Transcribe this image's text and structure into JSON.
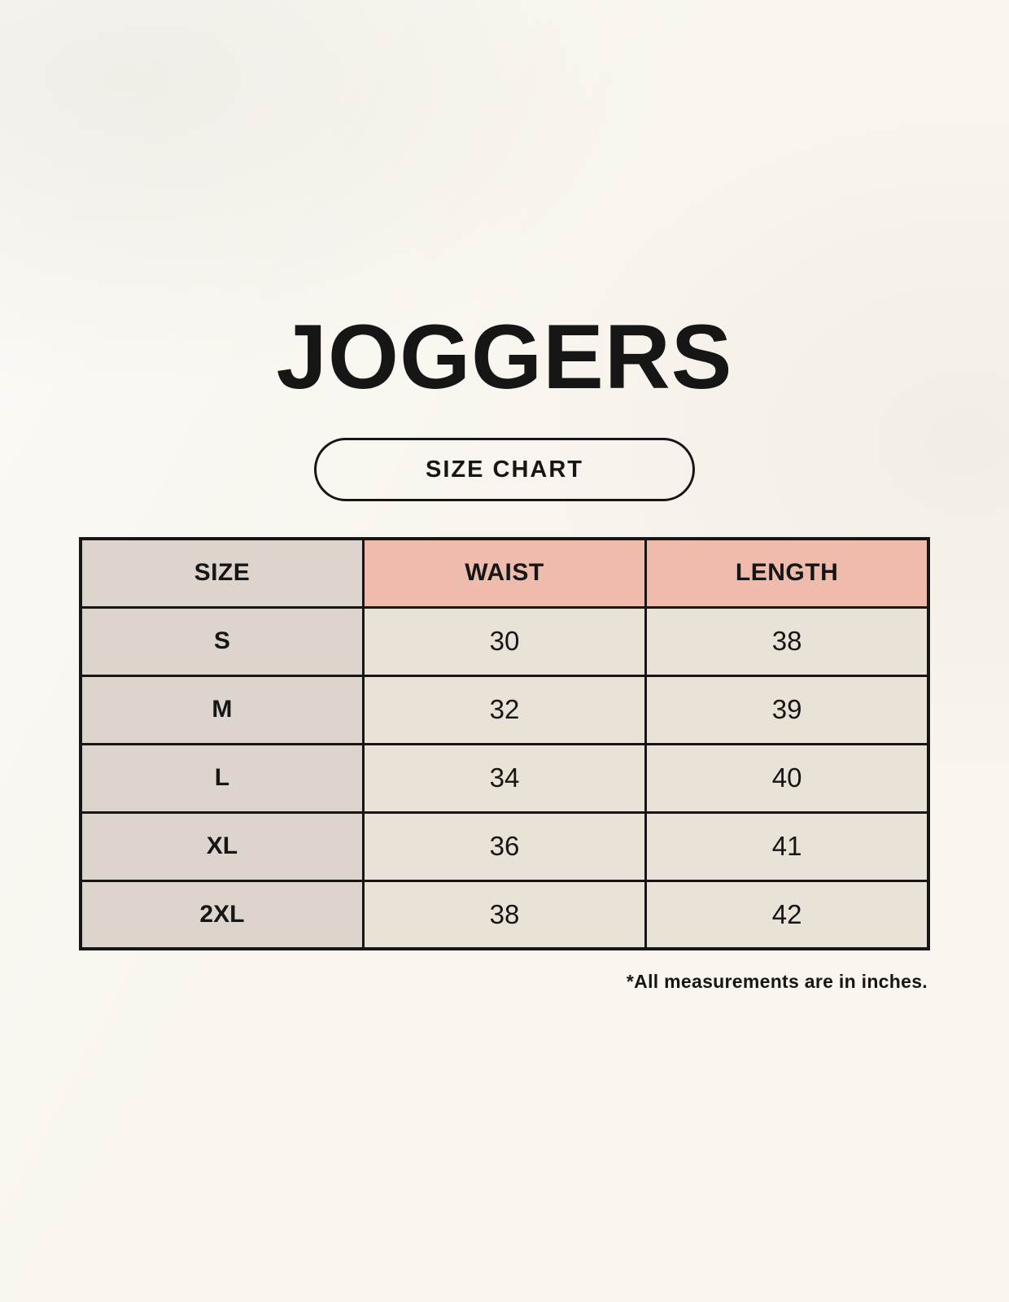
{
  "page": {
    "title": "JOGGERS",
    "size_chart_badge": "SIZE CHART",
    "footnote": "*All measurements are in inches."
  },
  "colors": {
    "page-bg": "#f9f5ee",
    "ink": "#161616",
    "header-pink": "#eebbac",
    "size-col-taupe": "#ddd4ce",
    "cell-cream": "#e9e2d6"
  },
  "table": {
    "headers": {
      "size": "SIZE",
      "waist": "WAIST",
      "length": "LENGTH"
    },
    "rows": [
      {
        "size": "S",
        "waist": "30",
        "length": "38"
      },
      {
        "size": "M",
        "waist": "32",
        "length": "39"
      },
      {
        "size": "L",
        "waist": "34",
        "length": "40"
      },
      {
        "size": "XL",
        "waist": "36",
        "length": "41"
      },
      {
        "size": "2XL",
        "waist": "38",
        "length": "42"
      }
    ]
  },
  "chart_data": {
    "type": "table",
    "title": "JOGGERS",
    "subtitle": "SIZE CHART",
    "columns": [
      "SIZE",
      "WAIST",
      "LENGTH"
    ],
    "rows": [
      [
        "S",
        30,
        38
      ],
      [
        "M",
        32,
        39
      ],
      [
        "L",
        34,
        40
      ],
      [
        "XL",
        36,
        41
      ],
      [
        "2XL",
        38,
        42
      ]
    ],
    "units_note": "*All measurements are in inches."
  }
}
